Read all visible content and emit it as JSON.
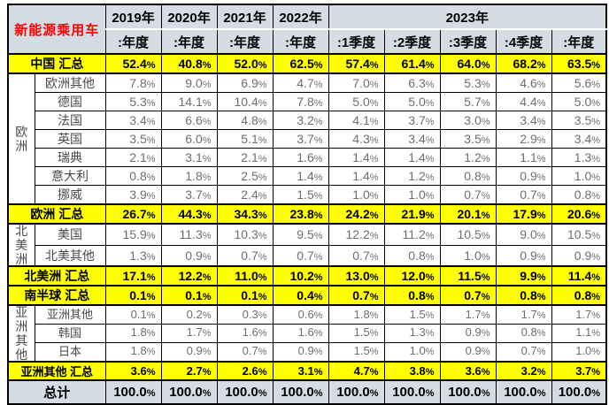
{
  "colors": {
    "highlight_yellow": "#FFFF00",
    "header_bg": "#D6DCE4",
    "title_red": "#FF0000",
    "value_text": "#6e6e6e",
    "border": "#000000"
  },
  "chart_data": {
    "type": "table",
    "title": "新能源乘用车",
    "unit": "%",
    "year_groups": [
      {
        "label": "2019年",
        "cols": 1
      },
      {
        "label": "2020年",
        "cols": 1
      },
      {
        "label": "2021年",
        "cols": 1
      },
      {
        "label": "2022年",
        "cols": 1
      },
      {
        "label": "2023年",
        "cols": 5
      }
    ],
    "columns": [
      ":年度",
      ":年度",
      ":年度",
      ":年度",
      ":1季度",
      ":2季度",
      ":3季度",
      ":4季度",
      ":年度"
    ],
    "rows": [
      {
        "label": "中国 汇总",
        "kind": "summary",
        "values": [
          52.4,
          40.8,
          52.0,
          62.5,
          57.4,
          61.4,
          64.0,
          68.2,
          63.5
        ]
      },
      {
        "label": "欧洲其他",
        "kind": "data",
        "group": "欧洲",
        "group_span": 7,
        "values": [
          7.8,
          9.0,
          6.9,
          4.7,
          7.0,
          6.3,
          5.3,
          4.6,
          5.6
        ]
      },
      {
        "label": "德国",
        "kind": "data",
        "values": [
          5.3,
          14.1,
          10.4,
          7.8,
          5.0,
          5.0,
          5.7,
          4.4,
          5.0
        ]
      },
      {
        "label": "法国",
        "kind": "data",
        "values": [
          3.4,
          6.6,
          4.8,
          3.2,
          4.1,
          3.7,
          3.0,
          3.4,
          3.5
        ]
      },
      {
        "label": "英国",
        "kind": "data",
        "values": [
          3.5,
          6.0,
          5.1,
          3.7,
          4.3,
          3.4,
          3.5,
          2.9,
          3.4
        ]
      },
      {
        "label": "瑞典",
        "kind": "data",
        "values": [
          2.1,
          3.1,
          2.1,
          1.6,
          1.4,
          1.4,
          1.2,
          1.1,
          1.3
        ]
      },
      {
        "label": "意大利",
        "kind": "data",
        "values": [
          0.8,
          1.8,
          2.5,
          1.4,
          1.4,
          1.2,
          0.8,
          0.9,
          1.0
        ]
      },
      {
        "label": "挪威",
        "kind": "data",
        "values": [
          3.9,
          3.7,
          2.4,
          1.5,
          1.0,
          1.0,
          0.7,
          0.7,
          0.8
        ]
      },
      {
        "label": "欧洲 汇总",
        "kind": "summary",
        "values": [
          26.7,
          44.3,
          34.3,
          23.8,
          24.2,
          21.9,
          20.1,
          17.9,
          20.6
        ]
      },
      {
        "label": "美国",
        "kind": "data",
        "group": "北美洲",
        "group_span": 2,
        "values": [
          15.9,
          11.3,
          10.3,
          9.5,
          12.2,
          11.2,
          10.5,
          9.0,
          10.5
        ]
      },
      {
        "label": "北美其他",
        "kind": "data",
        "values": [
          1.3,
          0.9,
          0.7,
          0.7,
          0.7,
          0.8,
          1.0,
          0.9,
          0.9
        ]
      },
      {
        "label": "北美洲 汇总",
        "kind": "summary",
        "values": [
          17.1,
          12.2,
          11.0,
          10.2,
          13.0,
          12.0,
          11.5,
          9.9,
          11.4
        ]
      },
      {
        "label": "南半球 汇总",
        "kind": "summary",
        "values": [
          0.1,
          0.1,
          0.1,
          0.4,
          0.7,
          0.8,
          0.7,
          0.8,
          0.8
        ]
      },
      {
        "label": "亚洲其他",
        "kind": "data",
        "group": "亚洲其他",
        "group_span": 3,
        "values": [
          0.1,
          0.2,
          0.3,
          0.6,
          1.8,
          1.5,
          1.7,
          1.7,
          1.7
        ]
      },
      {
        "label": "韩国",
        "kind": "data",
        "values": [
          1.8,
          1.7,
          1.6,
          1.6,
          1.5,
          1.3,
          0.9,
          0.8,
          1.1
        ]
      },
      {
        "label": "日本",
        "kind": "data",
        "values": [
          1.8,
          0.9,
          0.7,
          0.9,
          1.5,
          1.0,
          0.9,
          0.7,
          1.0
        ]
      },
      {
        "label": "亚洲其他 汇总",
        "kind": "summary",
        "values": [
          3.6,
          2.7,
          2.6,
          3.1,
          4.7,
          3.8,
          3.6,
          3.2,
          3.7
        ]
      },
      {
        "label": "总计",
        "kind": "total",
        "values": [
          100.0,
          100.0,
          100.0,
          100.0,
          100.0,
          100.0,
          100.0,
          100.0,
          100.0
        ]
      }
    ]
  }
}
